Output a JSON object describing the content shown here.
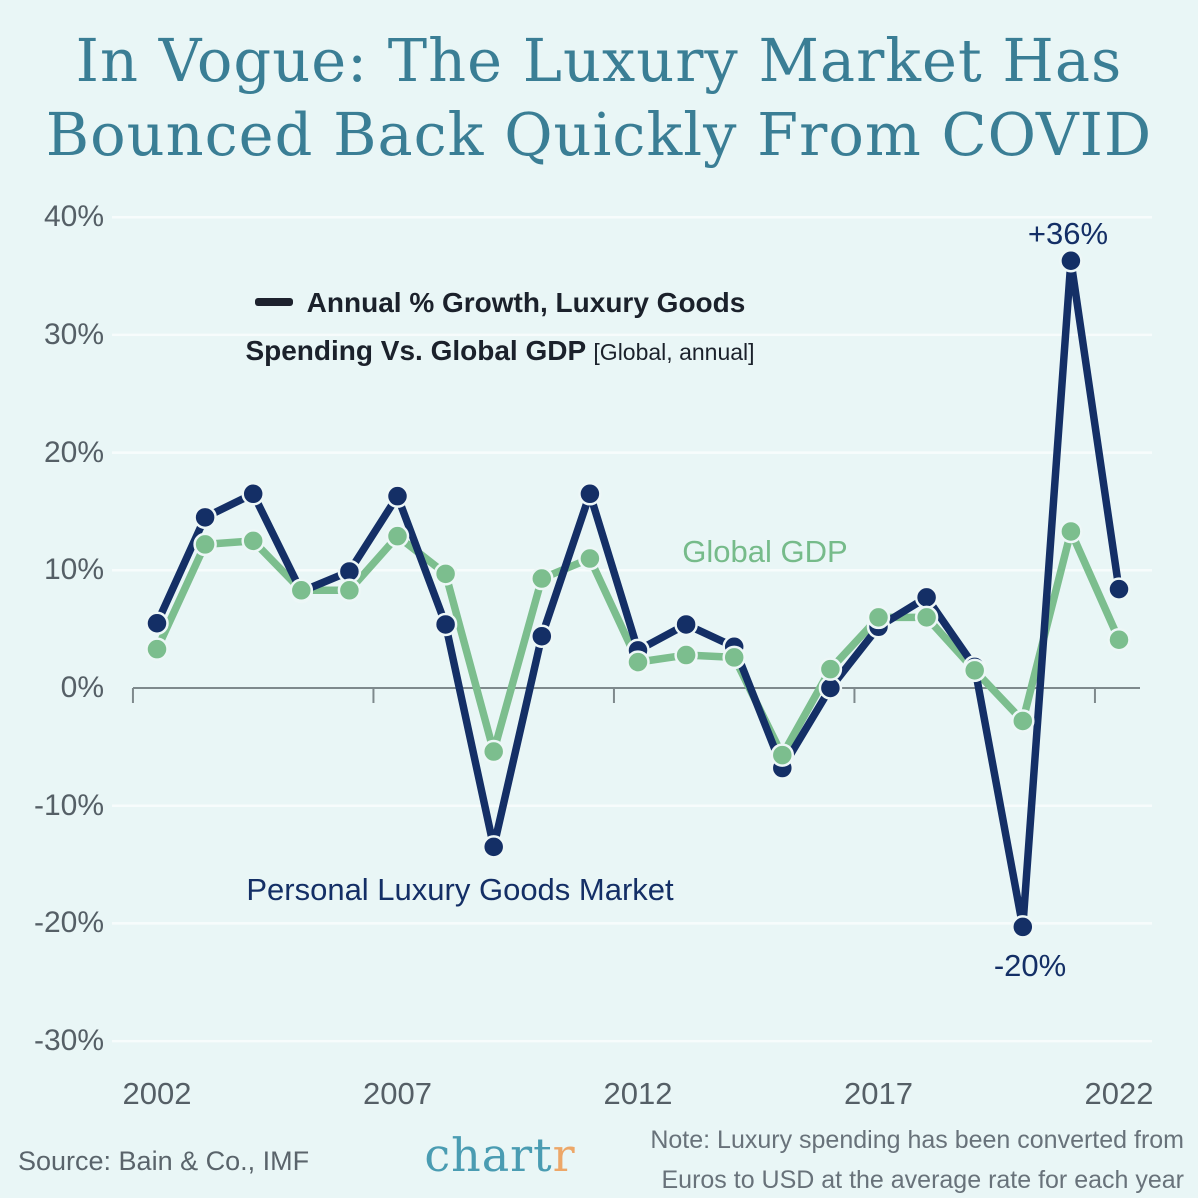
{
  "title": {
    "line1": "In Vogue: The Luxury Market Has",
    "line2": "Bounced Back Quickly From COVID"
  },
  "legend": {
    "line1": "Annual % Growth, Luxury Goods",
    "line2_bold": "Spending Vs. Global GDP",
    "line2_light": "[Global, annual]"
  },
  "annotations": {
    "peak": "+36%",
    "trough": "-20%",
    "gdp_label": "Global GDP",
    "luxury_label": "Personal Luxury Goods Market"
  },
  "footer": {
    "source": "Source: Bain & Co., IMF",
    "logo_main": "chart",
    "logo_accent": "r",
    "note_line1": "Note: Luxury spending has been converted from",
    "note_line2": "Euros to USD at the average rate for each year"
  },
  "colors": {
    "background": "#e9f6f6",
    "navy": "#142f66",
    "green": "#7cbe8e",
    "title_teal": "#3a7e95",
    "logo_teal": "#4a9cb2",
    "logo_orange": "#eda768",
    "axis": "#7e898c",
    "tick_text": "#555f66",
    "gridline": "#f7fcfc",
    "dot_ring": "#edf7f7"
  },
  "chart_data": {
    "type": "line",
    "title": "Annual % Growth, Luxury Goods Spending Vs. Global GDP [Global, annual]",
    "xlabel": "",
    "ylabel": "Annual % growth",
    "ylim": [
      -30,
      40
    ],
    "grid": "on",
    "legend_position": "upper-left-annotated",
    "x": [
      2002,
      2003,
      2004,
      2005,
      2006,
      2007,
      2008,
      2009,
      2010,
      2011,
      2012,
      2013,
      2014,
      2015,
      2016,
      2017,
      2018,
      2019,
      2020,
      2021,
      2022
    ],
    "series": [
      {
        "name": "Personal Luxury Goods Market",
        "color": "#142f66",
        "values": [
          5.5,
          14.5,
          16.5,
          8.2,
          9.9,
          16.3,
          5.4,
          -13.5,
          4.4,
          16.5,
          3.2,
          5.4,
          3.5,
          -6.8,
          0.0,
          5.2,
          7.7,
          1.8,
          -20.3,
          36.3,
          8.4
        ]
      },
      {
        "name": "Global GDP",
        "color": "#7cbe8e",
        "values": [
          3.3,
          12.2,
          12.5,
          8.3,
          8.3,
          12.9,
          9.7,
          -5.4,
          9.3,
          11.0,
          2.2,
          2.8,
          2.6,
          -5.7,
          1.6,
          6.0,
          6.0,
          1.5,
          -2.8,
          13.3,
          4.1
        ]
      }
    ],
    "grid_values": [
      40,
      30,
      20,
      10,
      -10,
      -20,
      -30
    ],
    "yticks": [
      {
        "v": 40,
        "label": "40%"
      },
      {
        "v": 30,
        "label": "30%"
      },
      {
        "v": 20,
        "label": "20%"
      },
      {
        "v": 10,
        "label": "10%"
      },
      {
        "v": 0,
        "label": "0%"
      },
      {
        "v": -10,
        "label": "-10%"
      },
      {
        "v": -20,
        "label": "-20%"
      },
      {
        "v": -30,
        "label": "-30%"
      }
    ],
    "xticks": [
      {
        "year": 2002,
        "label": "2002"
      },
      {
        "year": 2007,
        "label": "2007"
      },
      {
        "year": 2012,
        "label": "2012"
      },
      {
        "year": 2017,
        "label": "2017"
      },
      {
        "year": 2022,
        "label": "2022"
      }
    ]
  }
}
